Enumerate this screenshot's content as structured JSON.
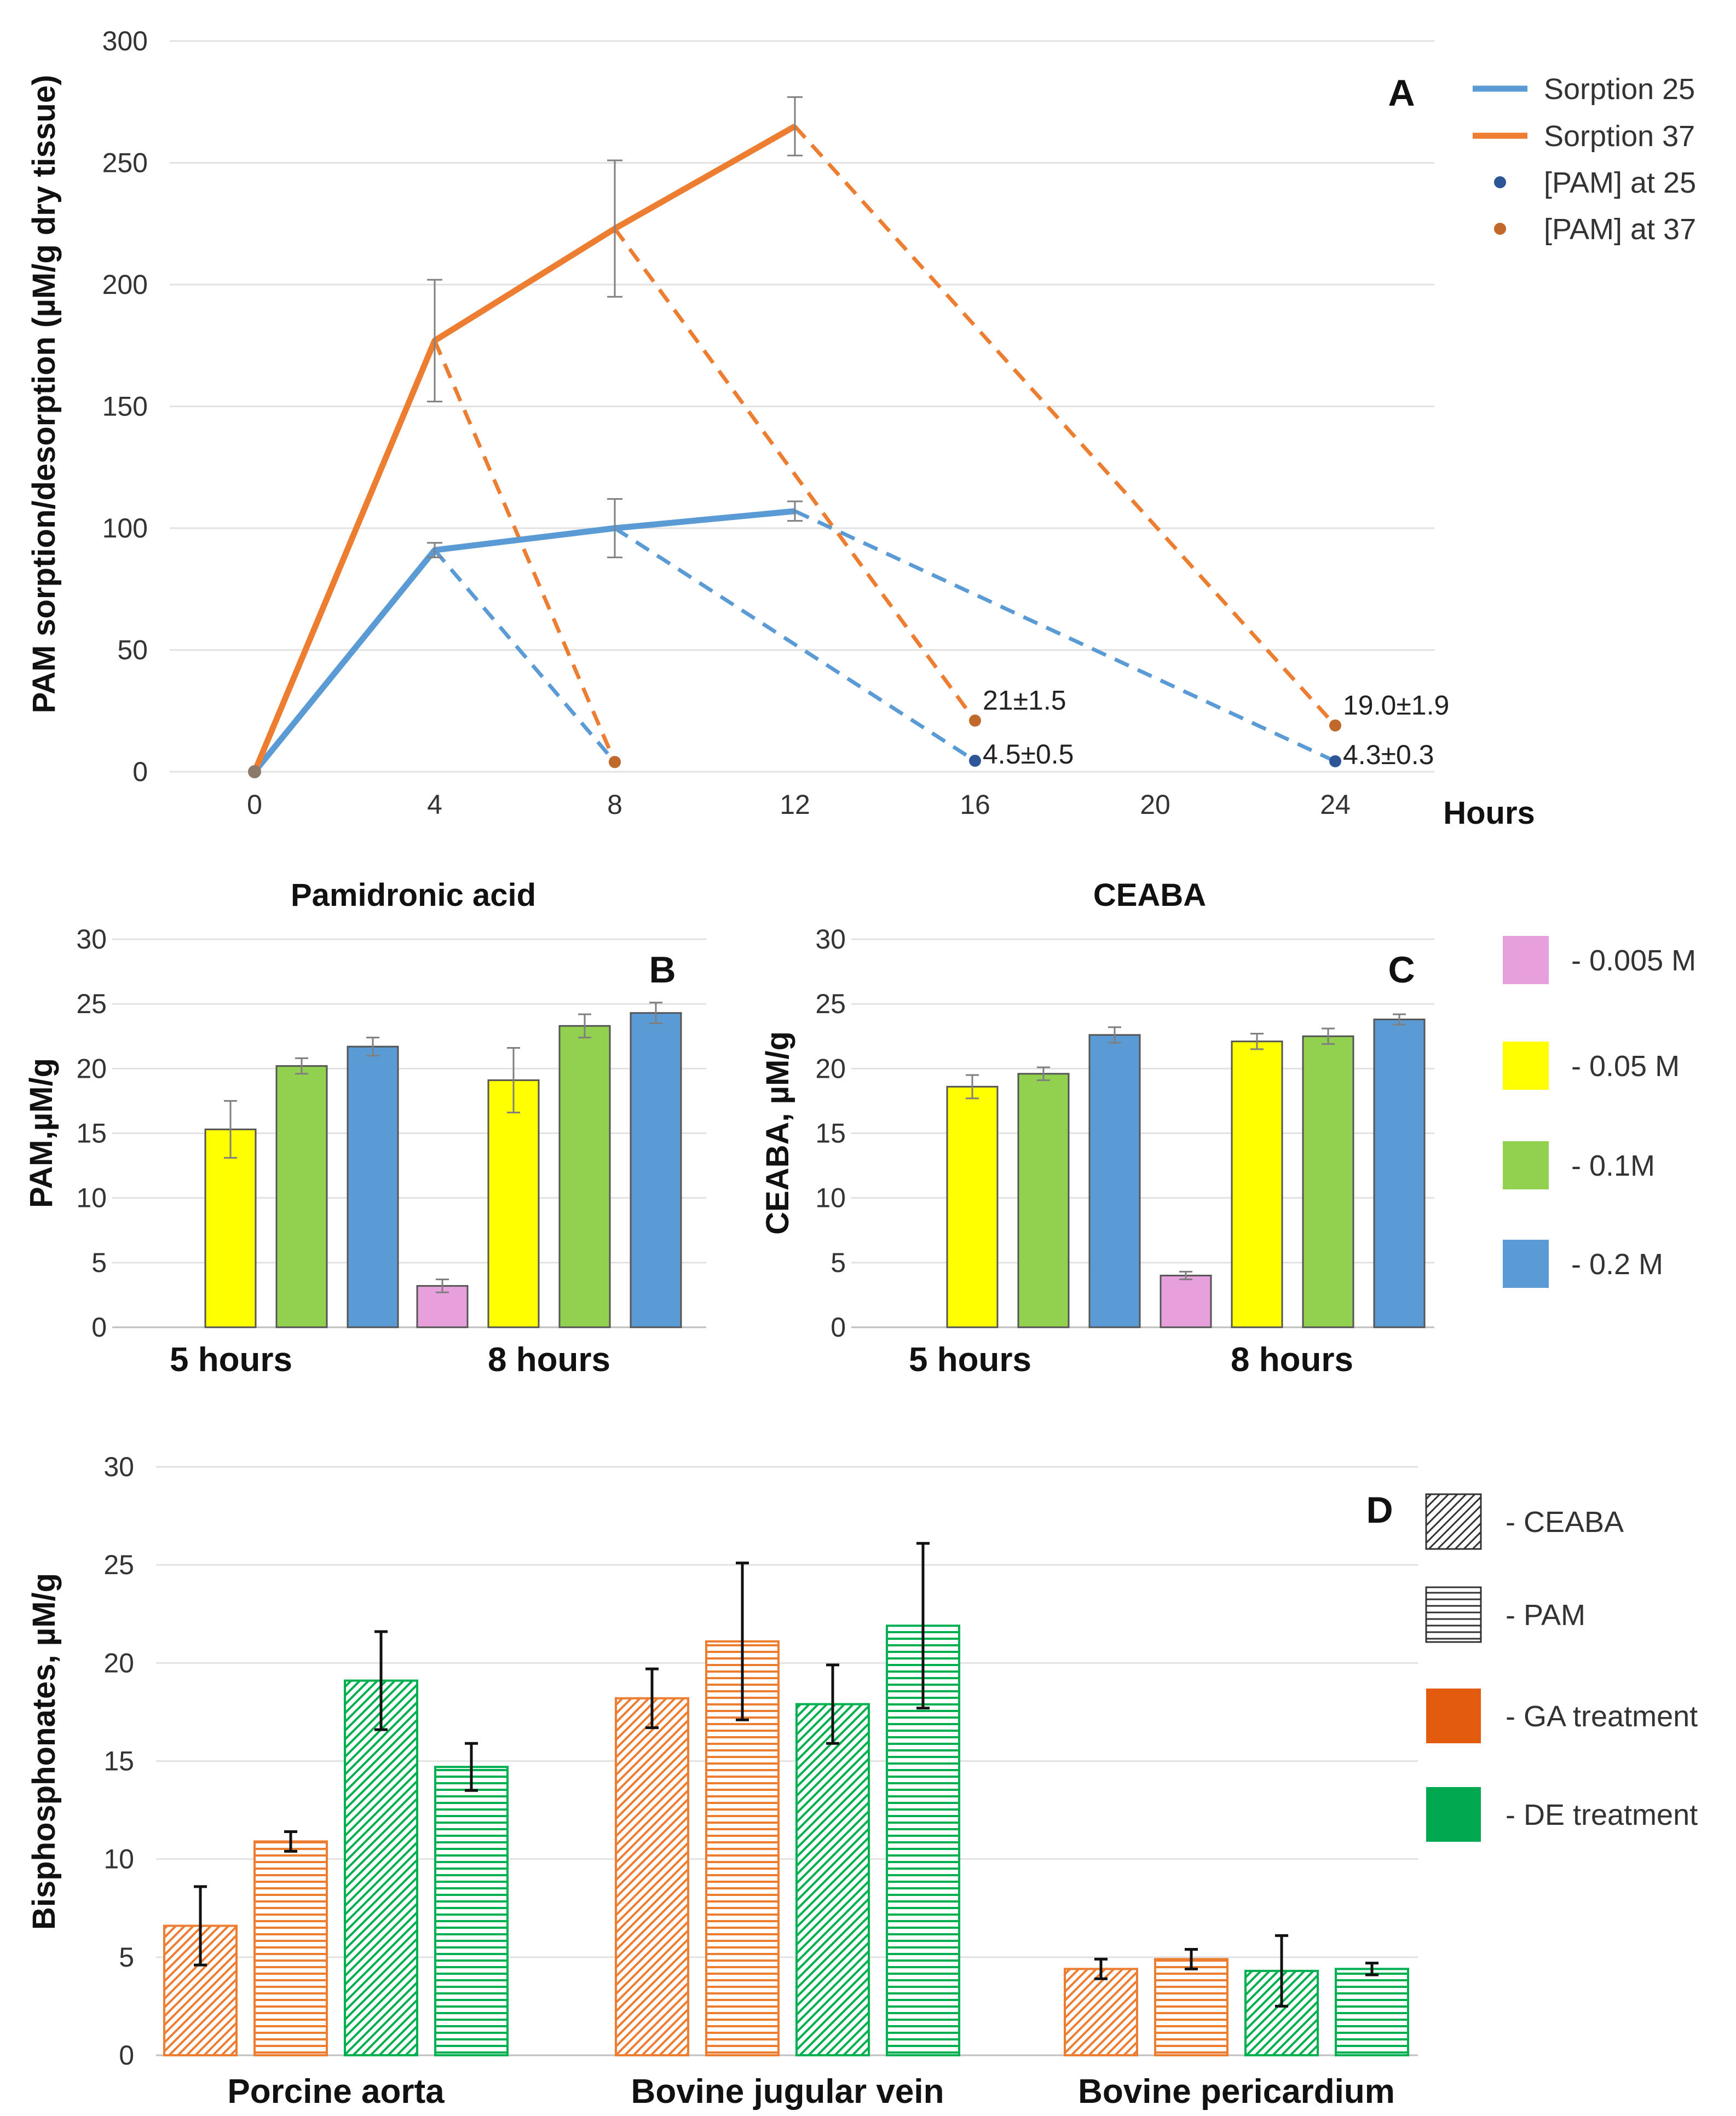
{
  "chart_data": [
    {
      "panel": "A",
      "type": "line",
      "letter": "A",
      "ylabel": "PAM sorption/desorption (µM/g dry tissue)",
      "xlabel": "Hours",
      "ylim": [
        0,
        300
      ],
      "yticks": [
        "0",
        "50",
        "100",
        "150",
        "200",
        "250",
        "300"
      ],
      "xlim": [
        0,
        24
      ],
      "xticks": [
        "0",
        "4",
        "8",
        "12",
        "16",
        "20",
        "24"
      ],
      "x_categories": [
        0,
        4,
        8,
        12,
        16,
        20,
        24
      ],
      "colors": {
        "blue": "#5b9bd5",
        "orange": "#ed7d31",
        "blue_dot": "#2e5597",
        "orange_dot": "#c0692b"
      },
      "legend": [
        "Sorption 25",
        "Sorption 37",
        "[PAM] at 25",
        "[PAM] at 37"
      ],
      "series": [
        {
          "name": "Sorption 25",
          "x": [
            0,
            4,
            8,
            12
          ],
          "values": [
            0,
            91,
            100,
            107
          ],
          "errors": [
            0,
            3,
            12,
            4
          ]
        },
        {
          "name": "Sorption 37",
          "x": [
            0,
            4,
            8,
            12
          ],
          "values": [
            0,
            177,
            223,
            265
          ],
          "errors": [
            0,
            25,
            28,
            12
          ]
        }
      ],
      "desorption_25": [
        {
          "from_x": 4,
          "from_y": 91,
          "to_x": 8,
          "to_y": 4
        },
        {
          "from_x": 8,
          "from_y": 100,
          "to_x": 16,
          "to_y": 4.5
        },
        {
          "from_x": 12,
          "from_y": 107,
          "to_x": 24,
          "to_y": 4.3
        }
      ],
      "desorption_37": [
        {
          "from_x": 4,
          "from_y": 177,
          "to_x": 8,
          "to_y": 4
        },
        {
          "from_x": 8,
          "from_y": 223,
          "to_x": 16,
          "to_y": 21
        },
        {
          "from_x": 12,
          "from_y": 265,
          "to_x": 24,
          "to_y": 19
        }
      ],
      "points_25": [
        {
          "x": 0,
          "y": 0
        },
        {
          "x": 8,
          "y": 4
        },
        {
          "x": 16,
          "y": 4.5
        },
        {
          "x": 24,
          "y": 4.3
        }
      ],
      "points_37": [
        {
          "x": 0,
          "y": 0
        },
        {
          "x": 8,
          "y": 4
        },
        {
          "x": 16,
          "y": 21
        },
        {
          "x": 24,
          "y": 19
        }
      ],
      "annotations": [
        {
          "x": 16,
          "y": 21,
          "text": "21±1.5",
          "series": "37"
        },
        {
          "x": 16,
          "y": 4.5,
          "text": "4.5±0.5",
          "series": "25"
        },
        {
          "x": 24,
          "y": 19,
          "text": "19.0±1.9",
          "series": "37"
        },
        {
          "x": 24,
          "y": 4.3,
          "text": "4.3±0.3",
          "series": "25"
        }
      ]
    },
    {
      "panel": "B",
      "type": "bar",
      "letter": "B",
      "title": "Pamidronic acid",
      "ylabel": "PAM,µM/g",
      "ylim": [
        0,
        30
      ],
      "yticks": [
        "0",
        "5",
        "10",
        "15",
        "20",
        "25",
        "30"
      ],
      "categories": [
        "5 hours",
        "8 hours"
      ],
      "series": [
        {
          "name": "0.005 M",
          "color": "#e8a0dc",
          "values": [
            null,
            3.2
          ],
          "errors": [
            null,
            0.5
          ]
        },
        {
          "name": "0.05 M",
          "color": "#ffff00",
          "values": [
            15.3,
            19.1
          ],
          "errors": [
            2.2,
            2.5
          ]
        },
        {
          "name": "0.1M",
          "color": "#92d050",
          "values": [
            20.2,
            23.3
          ],
          "errors": [
            0.6,
            0.9
          ]
        },
        {
          "name": "0.2 M",
          "color": "#5b9bd5",
          "values": [
            21.7,
            24.3
          ],
          "errors": [
            0.7,
            0.8
          ]
        }
      ]
    },
    {
      "panel": "C",
      "type": "bar",
      "letter": "C",
      "title": "CEABA",
      "ylabel": "CEABA, µM/g",
      "ylim": [
        0,
        30
      ],
      "yticks": [
        "0",
        "5",
        "10",
        "15",
        "20",
        "25",
        "30"
      ],
      "categories": [
        "5 hours",
        "8 hours"
      ],
      "series": [
        {
          "name": "0.005 M",
          "color": "#e8a0dc",
          "values": [
            null,
            4.0
          ],
          "errors": [
            null,
            0.3
          ]
        },
        {
          "name": "0.05 M",
          "color": "#ffff00",
          "values": [
            18.6,
            22.1
          ],
          "errors": [
            0.9,
            0.6
          ]
        },
        {
          "name": "0.1M",
          "color": "#92d050",
          "values": [
            19.6,
            22.5
          ],
          "errors": [
            0.5,
            0.6
          ]
        },
        {
          "name": "0.2 M",
          "color": "#5b9bd5",
          "values": [
            22.6,
            23.8
          ],
          "errors": [
            0.6,
            0.4
          ]
        }
      ],
      "legend": [
        "- 0.005 M",
        "- 0.05 M",
        "- 0.1M",
        "- 0.2 M"
      ]
    },
    {
      "panel": "D",
      "type": "bar",
      "letter": "D",
      "ylabel": "Bisphosphonates, µM/g",
      "ylim": [
        0,
        30
      ],
      "yticks": [
        "0",
        "5",
        "10",
        "15",
        "20",
        "25",
        "30"
      ],
      "categories": [
        "Porcine aorta",
        "Bovine jugular vein",
        "Bovine pericardium"
      ],
      "series": [
        {
          "name": "CEABA, GA treatment",
          "pattern": "diag",
          "color": "#ed7d31",
          "values": [
            6.6,
            18.2,
            4.4
          ],
          "errors": [
            2.0,
            1.5,
            0.5
          ]
        },
        {
          "name": "PAM, GA treatment",
          "pattern": "horiz",
          "color": "#ed7d31",
          "values": [
            10.9,
            21.1,
            4.9
          ],
          "errors": [
            0.5,
            4.0,
            0.5
          ]
        },
        {
          "name": "CEABA, DE treatment",
          "pattern": "diag",
          "color": "#00b050",
          "values": [
            19.1,
            17.9,
            4.3
          ],
          "errors": [
            2.5,
            2.0,
            1.8
          ]
        },
        {
          "name": "PAM, DE treatment",
          "pattern": "horiz",
          "color": "#00b050",
          "values": [
            14.7,
            21.9,
            4.4
          ],
          "errors": [
            1.2,
            4.2,
            0.3
          ]
        }
      ],
      "legend": [
        "- CEABA",
        "- PAM",
        "- GA treatment",
        "- DE treatment"
      ],
      "legend_colors": {
        "ga": "#e35b0f",
        "de": "#00a84f"
      }
    }
  ]
}
